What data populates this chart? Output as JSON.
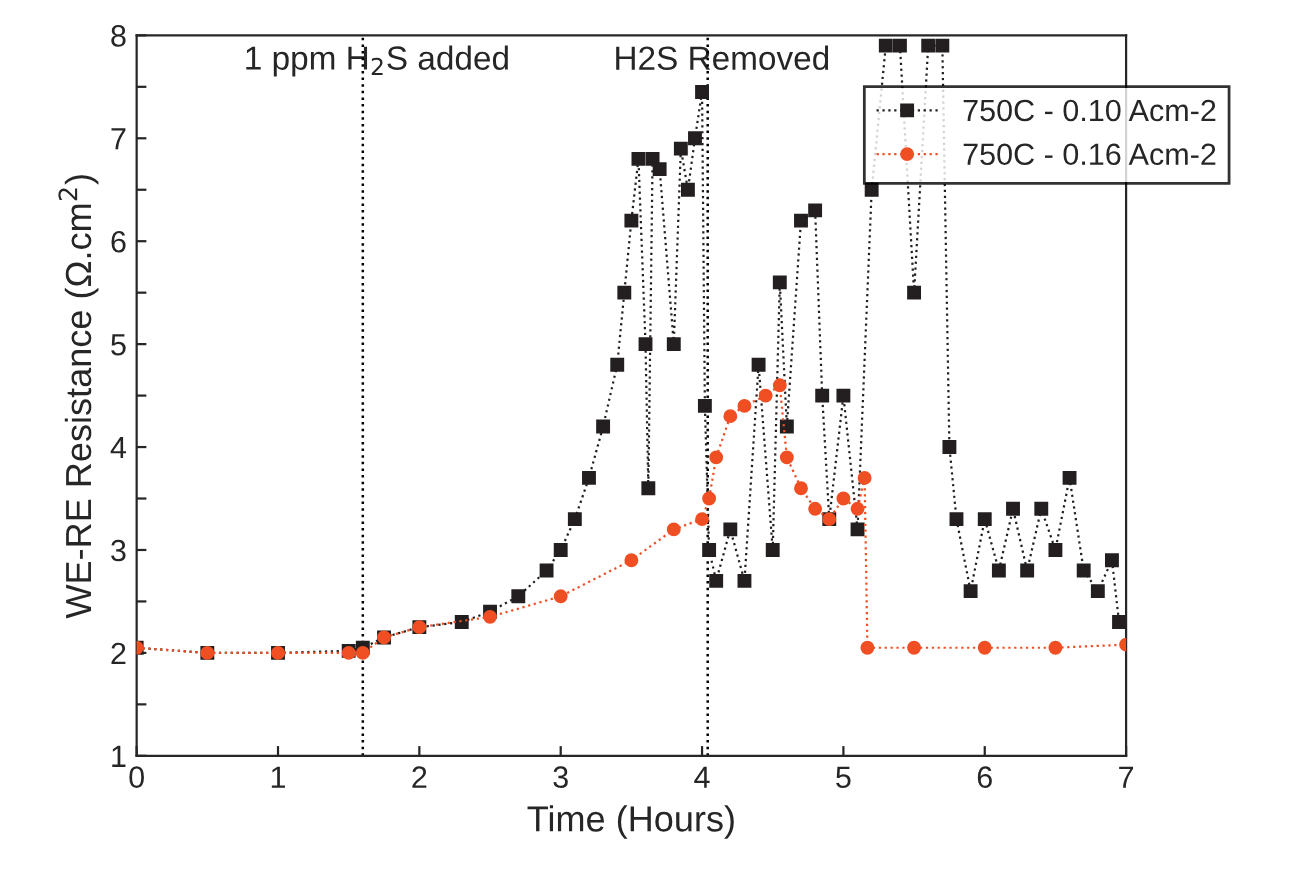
{
  "chart_data": {
    "type": "line",
    "xlabel": "Time (Hours)",
    "ylabel": "WE-RE Resistance (Ω.cm$^{2}$)",
    "xlim": [
      0,
      7
    ],
    "ylim": [
      1,
      8
    ],
    "xticks": [
      0,
      1,
      2,
      3,
      4,
      5,
      6,
      7
    ],
    "yticks": [
      1,
      {
        "value": 1.5,
        "label": null
      },
      2,
      {
        "value": 2.5,
        "label": null
      },
      3,
      {
        "value": 3.5,
        "label": null
      },
      4,
      {
        "value": 4.5,
        "label": null
      },
      5,
      {
        "value": 5.5,
        "label": null
      },
      6,
      {
        "value": 6.5,
        "label": null
      },
      7,
      {
        "value": 7.5,
        "label": null
      },
      8
    ],
    "grid": false,
    "legend": "top right",
    "line_style": "dotted",
    "ref_lines": [
      {
        "axis": "x",
        "value": 1.6,
        "label": "1 ppm H$_{2}$S added",
        "color": "#000000",
        "line_style": "dotted"
      },
      {
        "axis": "x",
        "value": 4.04,
        "label": "H2S Removed",
        "color": "#000000",
        "line_style": "dotted"
      }
    ],
    "series": [
      {
        "name": "750C - 0.10 Acm-2",
        "color": "#231f20",
        "marker": "square",
        "x": [
          0,
          0.5,
          1.0,
          1.5,
          1.6,
          1.75,
          2.0,
          2.3,
          2.5,
          2.7,
          2.9,
          3.0,
          3.1,
          3.2,
          3.3,
          3.4,
          3.45,
          3.5,
          3.55,
          3.6,
          3.62,
          3.65,
          3.7,
          3.8,
          3.85,
          3.9,
          3.95,
          4.0,
          4.02,
          4.05,
          4.1,
          4.2,
          4.3,
          4.4,
          4.5,
          4.55,
          4.6,
          4.7,
          4.8,
          4.85,
          4.9,
          5.0,
          5.1,
          5.2,
          5.3,
          5.4,
          5.5,
          5.6,
          5.7,
          5.75,
          5.8,
          5.9,
          6.0,
          6.1,
          6.2,
          6.3,
          6.4,
          6.5,
          6.6,
          6.7,
          6.8,
          6.9,
          6.95,
          7.0
        ],
        "values": [
          2.05,
          2.0,
          2.0,
          2.02,
          2.05,
          2.15,
          2.25,
          2.3,
          2.4,
          2.55,
          2.8,
          3.0,
          3.3,
          3.7,
          4.2,
          4.8,
          5.5,
          6.2,
          6.8,
          5.0,
          3.6,
          6.8,
          6.7,
          5.0,
          6.9,
          6.5,
          7.0,
          7.45,
          4.4,
          3.0,
          2.7,
          3.2,
          2.7,
          4.8,
          3.0,
          5.6,
          4.2,
          6.2,
          6.3,
          4.5,
          3.3,
          4.5,
          3.2,
          6.5,
          7.9,
          7.9,
          5.5,
          7.9,
          7.9,
          4.0,
          3.3,
          2.6,
          3.3,
          2.8,
          3.4,
          2.8,
          3.4,
          3.0,
          3.7,
          2.8,
          2.6,
          2.9,
          2.3,
          2.3
        ]
      },
      {
        "name": "750C - 0.16 Acm-2",
        "color": "#f04e23",
        "marker": "circle",
        "x": [
          0,
          0.5,
          1.0,
          1.5,
          1.6,
          1.75,
          2.0,
          2.5,
          3.0,
          3.5,
          3.8,
          4.0,
          4.05,
          4.1,
          4.2,
          4.3,
          4.45,
          4.55,
          4.6,
          4.7,
          4.8,
          4.9,
          5.0,
          5.1,
          5.15,
          5.17,
          5.5,
          6.0,
          6.5,
          7.0
        ],
        "values": [
          2.05,
          2.0,
          2.0,
          2.0,
          2.0,
          2.15,
          2.25,
          2.35,
          2.55,
          2.9,
          3.2,
          3.3,
          3.5,
          3.9,
          4.3,
          4.4,
          4.5,
          4.6,
          3.9,
          3.6,
          3.4,
          3.3,
          3.5,
          3.4,
          3.7,
          2.05,
          2.05,
          2.05,
          2.05,
          2.08
        ]
      }
    ]
  }
}
